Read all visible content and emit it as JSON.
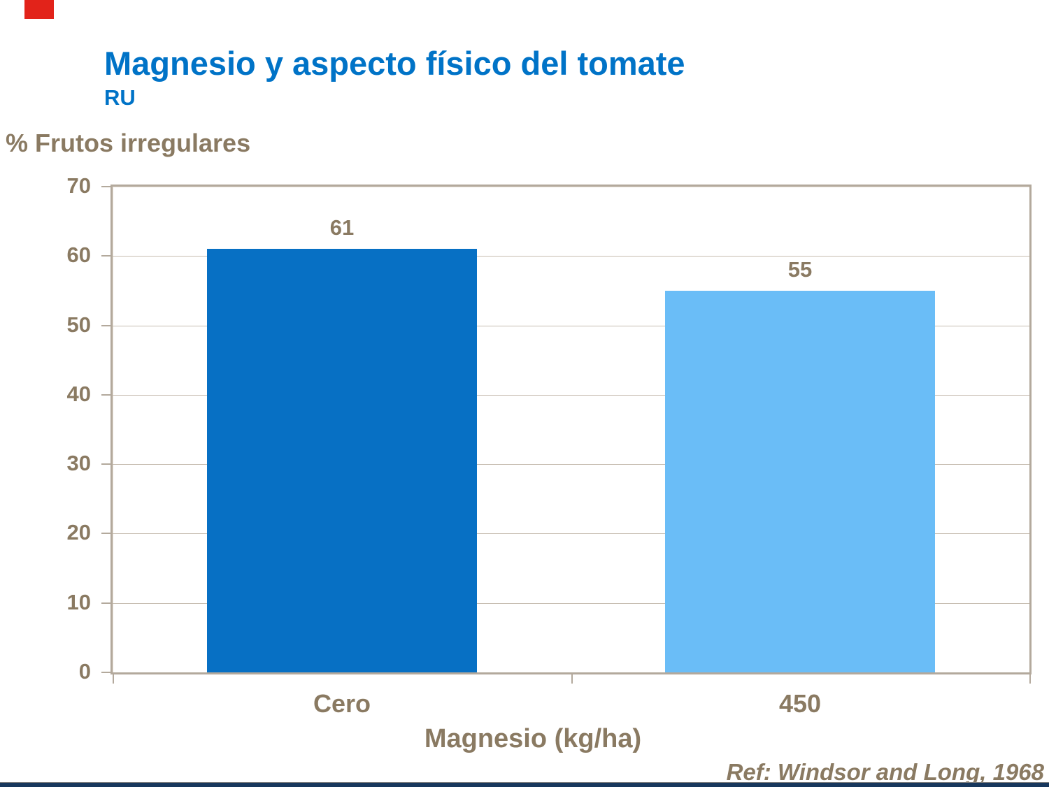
{
  "slide": {
    "title": "Magnesio y aspecto físico del tomate",
    "subtitle": "RU",
    "reference": "Ref: Windsor and Long, 1968"
  },
  "colors": {
    "title_blue": "#0073C7",
    "text_brown": "#8A7A62",
    "bar_dark_blue": "#0770C4",
    "bar_light_blue": "#6ABDF7",
    "axis_border_tan": "#B3A99C",
    "gridline_tan": "#C6BCB0",
    "footer_line_gray": "#7E7E7E",
    "footer_bar_navy": "#17375D",
    "logo_red": "#E2231A"
  },
  "chart_data": {
    "type": "bar",
    "title": "Magnesio y aspecto físico del tomate",
    "categories": [
      "Cero",
      "450"
    ],
    "values": [
      61,
      55
    ],
    "data_labels": [
      "61",
      "55"
    ],
    "bar_colors": [
      "#0770C4",
      "#6ABDF7"
    ],
    "xlabel": "Magnesio (kg/ha)",
    "ylabel": "% Frutos irregulares",
    "ylim": [
      0,
      70
    ],
    "yticks": [
      0,
      10,
      20,
      30,
      40,
      50,
      60,
      70
    ],
    "grid": true,
    "legend": false
  }
}
